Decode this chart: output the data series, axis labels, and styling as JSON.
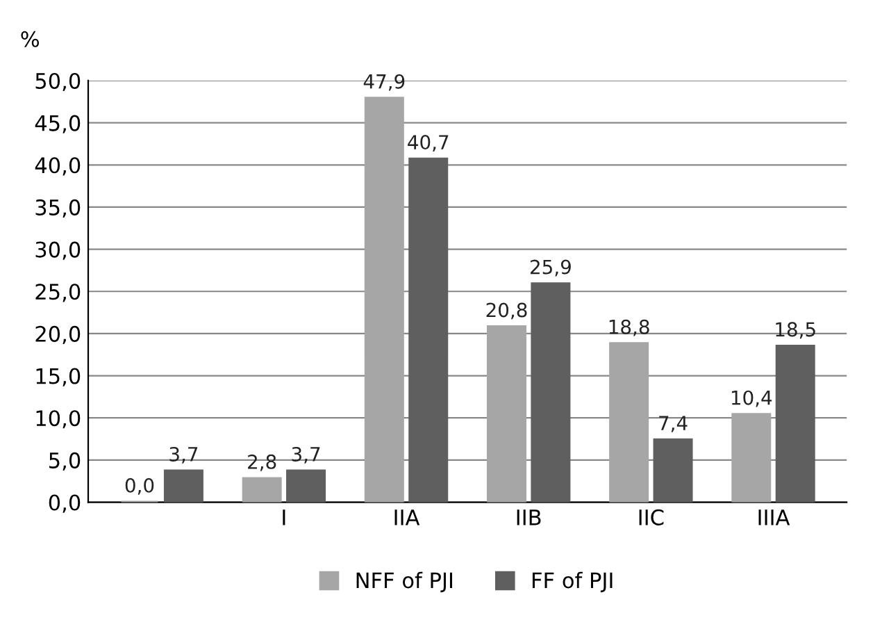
{
  "chart_data": {
    "type": "bar",
    "ylabel": "%",
    "categories": [
      null,
      "I",
      "IIA",
      "IIB",
      "IIC",
      "IIIA"
    ],
    "series": [
      {
        "name": "NFF of PJI",
        "color": "#a6a6a6",
        "values": [
          0.0,
          2.8,
          47.9,
          20.8,
          18.8,
          10.4
        ],
        "value_labels": [
          "0,0",
          "2,8",
          "47,9",
          "20,8",
          "18,8",
          "10,4"
        ]
      },
      {
        "name": "FF of PJI",
        "color": "#5f5f5f",
        "values": [
          3.7,
          3.7,
          40.7,
          25.9,
          7.4,
          18.5
        ],
        "value_labels": [
          "3,7",
          "3,7",
          "40,7",
          "25,9",
          "7,4",
          "18,5"
        ]
      }
    ],
    "ylim": [
      0,
      50
    ],
    "yticks": [
      {
        "value": 0,
        "label": "0,0"
      },
      {
        "value": 5,
        "label": "5,0"
      },
      {
        "value": 10,
        "label": "10,0"
      },
      {
        "value": 15,
        "label": "15,0"
      },
      {
        "value": 20,
        "label": "20,0"
      },
      {
        "value": 25,
        "label": "25,0"
      },
      {
        "value": 30,
        "label": "30,0"
      },
      {
        "value": 35,
        "label": "35,0"
      },
      {
        "value": 40,
        "label": "40,0"
      },
      {
        "value": 45,
        "label": "45,0"
      },
      {
        "value": 50,
        "label": "50,0"
      }
    ],
    "grid": "y",
    "legend": "bottom"
  }
}
